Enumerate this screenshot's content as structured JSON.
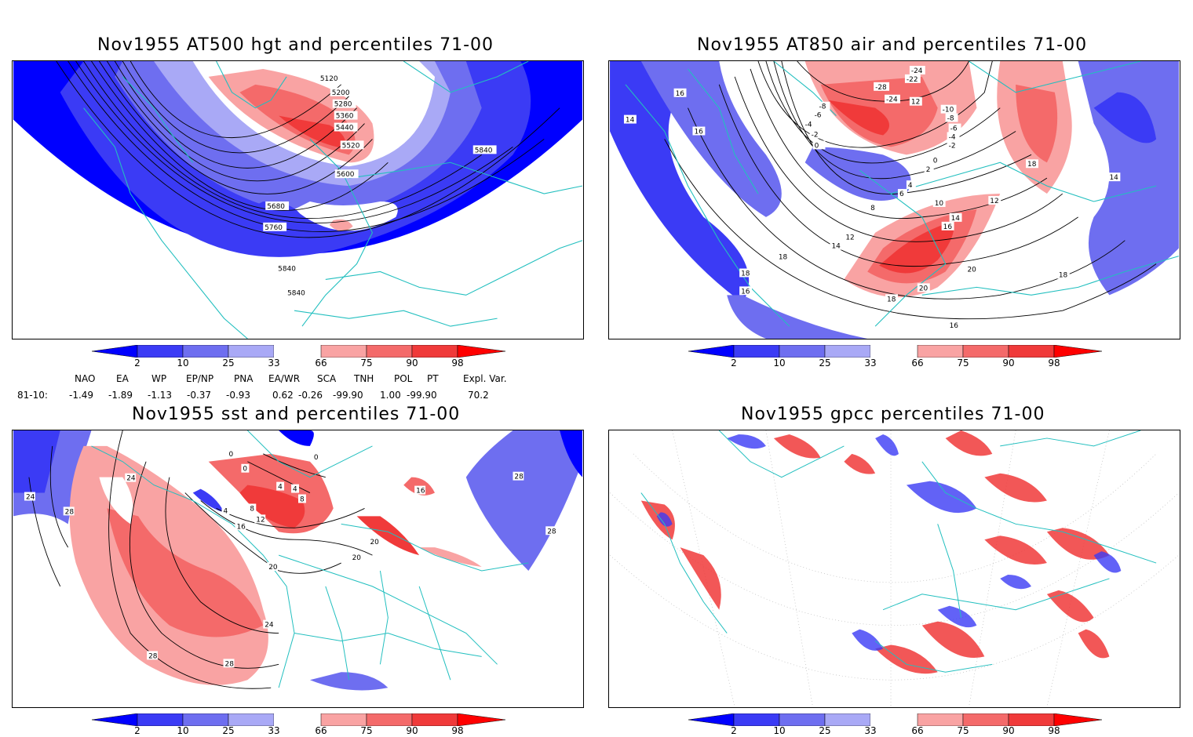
{
  "panels": [
    {
      "title": "Nov1955 AT500 hgt and percentiles 71-00",
      "contour_labels": [
        "5120",
        "5200",
        "5280",
        "5360",
        "5440",
        "5520",
        "5600",
        "5680",
        "5760",
        "5840",
        "5840",
        "5840"
      ]
    },
    {
      "title": "Nov1955 AT850 air and percentiles 71-00",
      "contour_labels": [
        "16",
        "14",
        "16",
        "-8",
        "-6",
        "-4",
        "-2",
        "0",
        "-28",
        "-24",
        "-22",
        "-24",
        "12",
        "-10",
        "-8",
        "-6",
        "-4",
        "-2",
        "0",
        "2",
        "4",
        "6",
        "8",
        "10",
        "12",
        "14",
        "16",
        "18",
        "18",
        "20",
        "20",
        "18",
        "18",
        "16",
        "16",
        "18",
        "14",
        "12",
        "14"
      ]
    },
    {
      "title": "Nov1955 sst and percentiles 71-00",
      "contour_labels": [
        "24",
        "28",
        "24",
        "0",
        "0",
        "0",
        "4",
        "4",
        "8",
        "4",
        "8",
        "12",
        "16",
        "16",
        "20",
        "20",
        "20",
        "24",
        "28",
        "28",
        "28",
        "28"
      ]
    },
    {
      "title": "Nov1955 gpcc percentiles 71-00",
      "contour_labels": []
    }
  ],
  "colorbar": {
    "labels": [
      "2",
      "10",
      "25",
      "33",
      "66",
      "75",
      "90",
      "98"
    ],
    "colors": [
      "#0000ff",
      "#3b3bf5",
      "#6e6ef0",
      "#a9a9f6",
      "#ffffff",
      "#f9a3a3",
      "#f46a6a",
      "#f03a3a",
      "#ff0000"
    ]
  },
  "indices": {
    "headers": [
      "NAO",
      "EA",
      "WP",
      "EP/NP",
      "PNA",
      "EA/WR",
      "SCA",
      "TNH",
      "POL",
      "PT",
      "Expl. Var."
    ],
    "row_label": "81-10:",
    "values": [
      "-1.49",
      "-1.89",
      "-1.13",
      "-0.37",
      "-0.93",
      "0.62",
      "-0.26",
      "-99.90",
      "1.00",
      "-99.90",
      "70.2"
    ]
  }
}
